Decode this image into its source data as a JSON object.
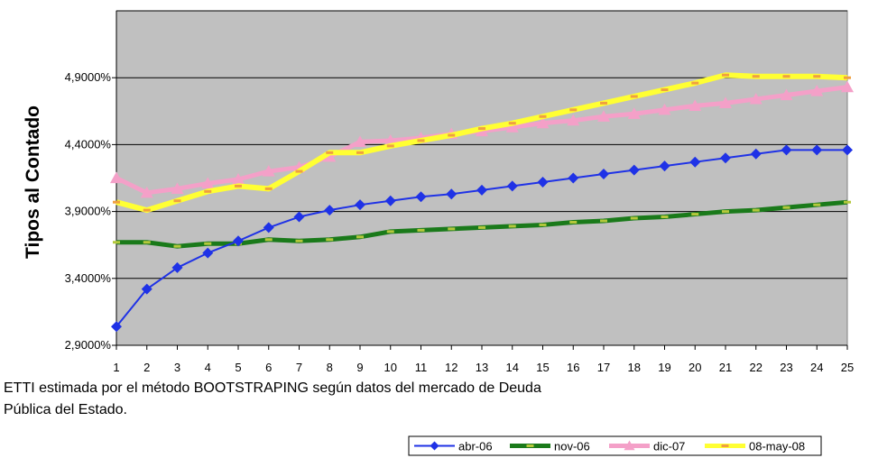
{
  "caption": {
    "line1": "ETTI estimada por el método BOOTSTRAPING según datos del mercado de Deuda",
    "line2": "Pública del Estado."
  },
  "colors": {
    "plot_background": "#c0c0c0",
    "grid": "#000000",
    "abr-06": "#1f32e6",
    "nov-06": "#1a7a1a",
    "nov-06-dash": "#b4c83c",
    "dic-07": "#f4a0c8",
    "08-may-08": "#ffff33",
    "08-may-08-dash": "#f0a040"
  },
  "chart_data": {
    "type": "line",
    "title": "",
    "xlabel": "",
    "ylabel": "Tipos al Contado",
    "x": [
      1,
      2,
      3,
      4,
      5,
      6,
      7,
      8,
      9,
      10,
      11,
      12,
      13,
      14,
      15,
      16,
      17,
      18,
      19,
      20,
      21,
      22,
      23,
      24,
      25
    ],
    "xlim": [
      1,
      25
    ],
    "ylim": [
      2.9,
      5.4
    ],
    "yticks": [
      2.9,
      3.4,
      3.9,
      4.4,
      4.9
    ],
    "ytick_labels": [
      "2,9000%",
      "3,4000%",
      "3,9000%",
      "4,4000%",
      "4,9000%"
    ],
    "grid": true,
    "legend_position": "bottom-right",
    "series": [
      {
        "name": "abr-06",
        "marker": "diamond",
        "values": [
          3.04,
          3.32,
          3.48,
          3.59,
          3.68,
          3.78,
          3.86,
          3.91,
          3.95,
          3.98,
          4.01,
          4.03,
          4.06,
          4.09,
          4.12,
          4.15,
          4.18,
          4.21,
          4.24,
          4.27,
          4.3,
          4.33,
          4.36,
          4.36,
          4.36
        ]
      },
      {
        "name": "nov-06",
        "marker": "dash",
        "values": [
          3.67,
          3.67,
          3.64,
          3.66,
          3.66,
          3.69,
          3.68,
          3.69,
          3.71,
          3.75,
          3.76,
          3.77,
          3.78,
          3.79,
          3.8,
          3.82,
          3.83,
          3.85,
          3.86,
          3.88,
          3.9,
          3.91,
          3.93,
          3.95,
          3.97
        ]
      },
      {
        "name": "dic-07",
        "marker": "triangle",
        "values": [
          4.15,
          4.04,
          4.07,
          4.11,
          4.14,
          4.2,
          4.23,
          4.31,
          4.42,
          4.43,
          4.45,
          4.48,
          4.5,
          4.53,
          4.56,
          4.58,
          4.61,
          4.63,
          4.66,
          4.69,
          4.71,
          4.74,
          4.77,
          4.8,
          4.83
        ]
      },
      {
        "name": "08-may-08",
        "marker": "dash",
        "values": [
          3.97,
          3.91,
          3.98,
          4.05,
          4.09,
          4.07,
          4.2,
          4.34,
          4.34,
          4.39,
          4.43,
          4.47,
          4.52,
          4.56,
          4.61,
          4.66,
          4.71,
          4.76,
          4.81,
          4.86,
          4.92,
          4.91,
          4.91,
          4.91,
          4.9
        ]
      }
    ]
  }
}
